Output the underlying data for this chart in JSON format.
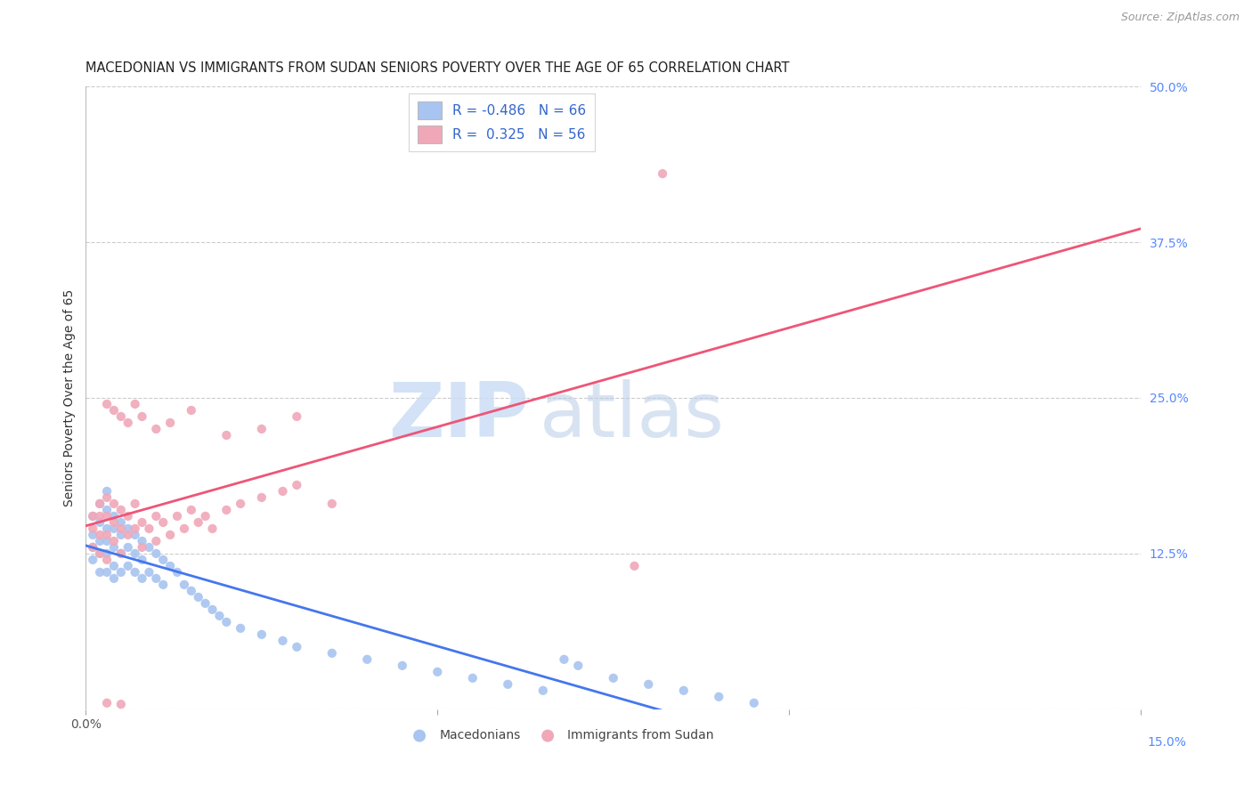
{
  "title": "MACEDONIAN VS IMMIGRANTS FROM SUDAN SENIORS POVERTY OVER THE AGE OF 65 CORRELATION CHART",
  "source": "Source: ZipAtlas.com",
  "ylabel": "Seniors Poverty Over the Age of 65",
  "xlim": [
    0.0,
    0.15
  ],
  "ylim": [
    0.0,
    0.5
  ],
  "yticks_right": [
    0.5,
    0.375,
    0.25,
    0.125,
    0.0
  ],
  "ytick_labels_right": [
    "50.0%",
    "37.5%",
    "25.0%",
    "12.5%",
    ""
  ],
  "grid_color": "#cccccc",
  "background_color": "#ffffff",
  "macedonian_color": "#a8c4f0",
  "sudan_color": "#f0a8b8",
  "macedonian_line_color": "#4477ee",
  "sudan_line_color": "#ee5577",
  "legend_label_1": "R = -0.486   N = 66",
  "legend_label_2": "R =  0.325   N = 56",
  "legend_label_blue": "Macedonians",
  "legend_label_pink": "Immigrants from Sudan",
  "mac_x": [
    0.001,
    0.001,
    0.001,
    0.001,
    0.002,
    0.002,
    0.002,
    0.002,
    0.002,
    0.003,
    0.003,
    0.003,
    0.003,
    0.003,
    0.003,
    0.004,
    0.004,
    0.004,
    0.004,
    0.004,
    0.005,
    0.005,
    0.005,
    0.005,
    0.006,
    0.006,
    0.006,
    0.007,
    0.007,
    0.007,
    0.008,
    0.008,
    0.008,
    0.009,
    0.009,
    0.01,
    0.01,
    0.011,
    0.011,
    0.012,
    0.013,
    0.014,
    0.015,
    0.016,
    0.017,
    0.018,
    0.019,
    0.02,
    0.022,
    0.025,
    0.028,
    0.03,
    0.035,
    0.04,
    0.045,
    0.05,
    0.055,
    0.06,
    0.065,
    0.068,
    0.07,
    0.075,
    0.08,
    0.085,
    0.09,
    0.095
  ],
  "mac_y": [
    0.155,
    0.14,
    0.13,
    0.12,
    0.165,
    0.15,
    0.135,
    0.125,
    0.11,
    0.175,
    0.16,
    0.145,
    0.135,
    0.125,
    0.11,
    0.155,
    0.145,
    0.13,
    0.115,
    0.105,
    0.15,
    0.14,
    0.125,
    0.11,
    0.145,
    0.13,
    0.115,
    0.14,
    0.125,
    0.11,
    0.135,
    0.12,
    0.105,
    0.13,
    0.11,
    0.125,
    0.105,
    0.12,
    0.1,
    0.115,
    0.11,
    0.1,
    0.095,
    0.09,
    0.085,
    0.08,
    0.075,
    0.07,
    0.065,
    0.06,
    0.055,
    0.05,
    0.045,
    0.04,
    0.035,
    0.03,
    0.025,
    0.02,
    0.015,
    0.04,
    0.035,
    0.025,
    0.02,
    0.015,
    0.01,
    0.005
  ],
  "sud_x": [
    0.001,
    0.001,
    0.001,
    0.002,
    0.002,
    0.002,
    0.002,
    0.003,
    0.003,
    0.003,
    0.003,
    0.004,
    0.004,
    0.004,
    0.005,
    0.005,
    0.005,
    0.006,
    0.006,
    0.007,
    0.007,
    0.008,
    0.008,
    0.009,
    0.01,
    0.01,
    0.011,
    0.012,
    0.013,
    0.014,
    0.015,
    0.016,
    0.017,
    0.018,
    0.02,
    0.022,
    0.025,
    0.028,
    0.03,
    0.035,
    0.003,
    0.004,
    0.005,
    0.006,
    0.007,
    0.008,
    0.01,
    0.012,
    0.015,
    0.02,
    0.025,
    0.03,
    0.003,
    0.005,
    0.082,
    0.078
  ],
  "sud_y": [
    0.155,
    0.145,
    0.13,
    0.165,
    0.155,
    0.14,
    0.125,
    0.17,
    0.155,
    0.14,
    0.12,
    0.165,
    0.15,
    0.135,
    0.16,
    0.145,
    0.125,
    0.155,
    0.14,
    0.165,
    0.145,
    0.15,
    0.13,
    0.145,
    0.155,
    0.135,
    0.15,
    0.14,
    0.155,
    0.145,
    0.16,
    0.15,
    0.155,
    0.145,
    0.16,
    0.165,
    0.17,
    0.175,
    0.18,
    0.165,
    0.245,
    0.24,
    0.235,
    0.23,
    0.245,
    0.235,
    0.225,
    0.23,
    0.24,
    0.22,
    0.225,
    0.235,
    0.005,
    0.004,
    0.43,
    0.115
  ]
}
